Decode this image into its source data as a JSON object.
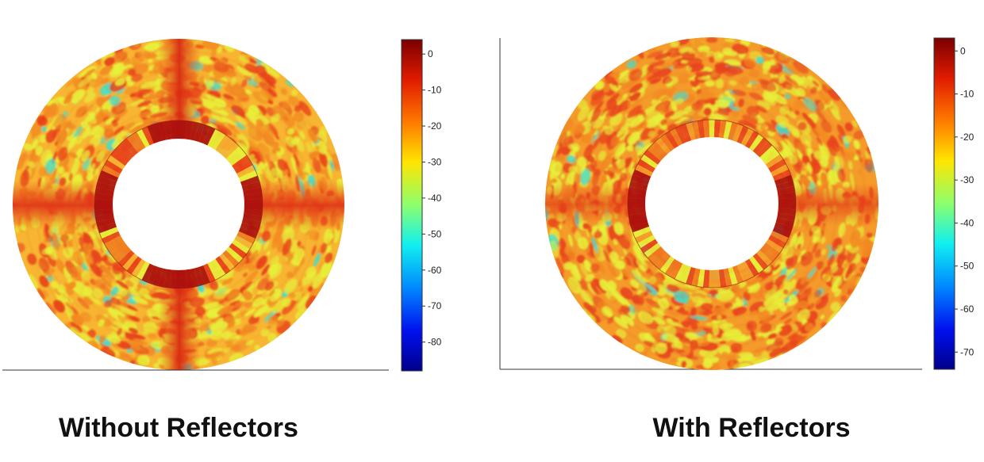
{
  "chart_data": [
    {
      "type": "heatmap",
      "title": "Without Reflectors",
      "colorbar": {
        "ticks": [
          0,
          -10,
          -20,
          -30,
          -40,
          -50,
          -60,
          -70,
          -80
        ],
        "range": [
          -88,
          4
        ],
        "colormap": "jet"
      },
      "pattern": "strong cross-shaped bands through the horizontal and vertical axes of the ring; speckled yellow-orange elsewhere",
      "ring": {
        "inner_radius_ratio": 0.39
      },
      "colors": {
        "ring_base": "#f7b531",
        "band": "#e8401a",
        "peak": "#a80d0d",
        "speckle": "#e7f03a",
        "cyan": "#3fdfd0"
      }
    },
    {
      "type": "heatmap",
      "title": "With Reflectors",
      "colorbar": {
        "ticks": [
          0,
          -10,
          -20,
          -30,
          -40,
          -50,
          -60,
          -70
        ],
        "range": [
          -74,
          3
        ],
        "colormap": "jet"
      },
      "pattern": "bands weaker and spread around the ring; denser orange-red patches",
      "ring": {
        "inner_radius_ratio": 0.4
      },
      "colors": {
        "ring_base": "#f49b2a",
        "band": "#e8441c",
        "peak": "#a80d0d",
        "speckle": "#e7f03a",
        "cyan": "#3fdfd0"
      }
    }
  ]
}
